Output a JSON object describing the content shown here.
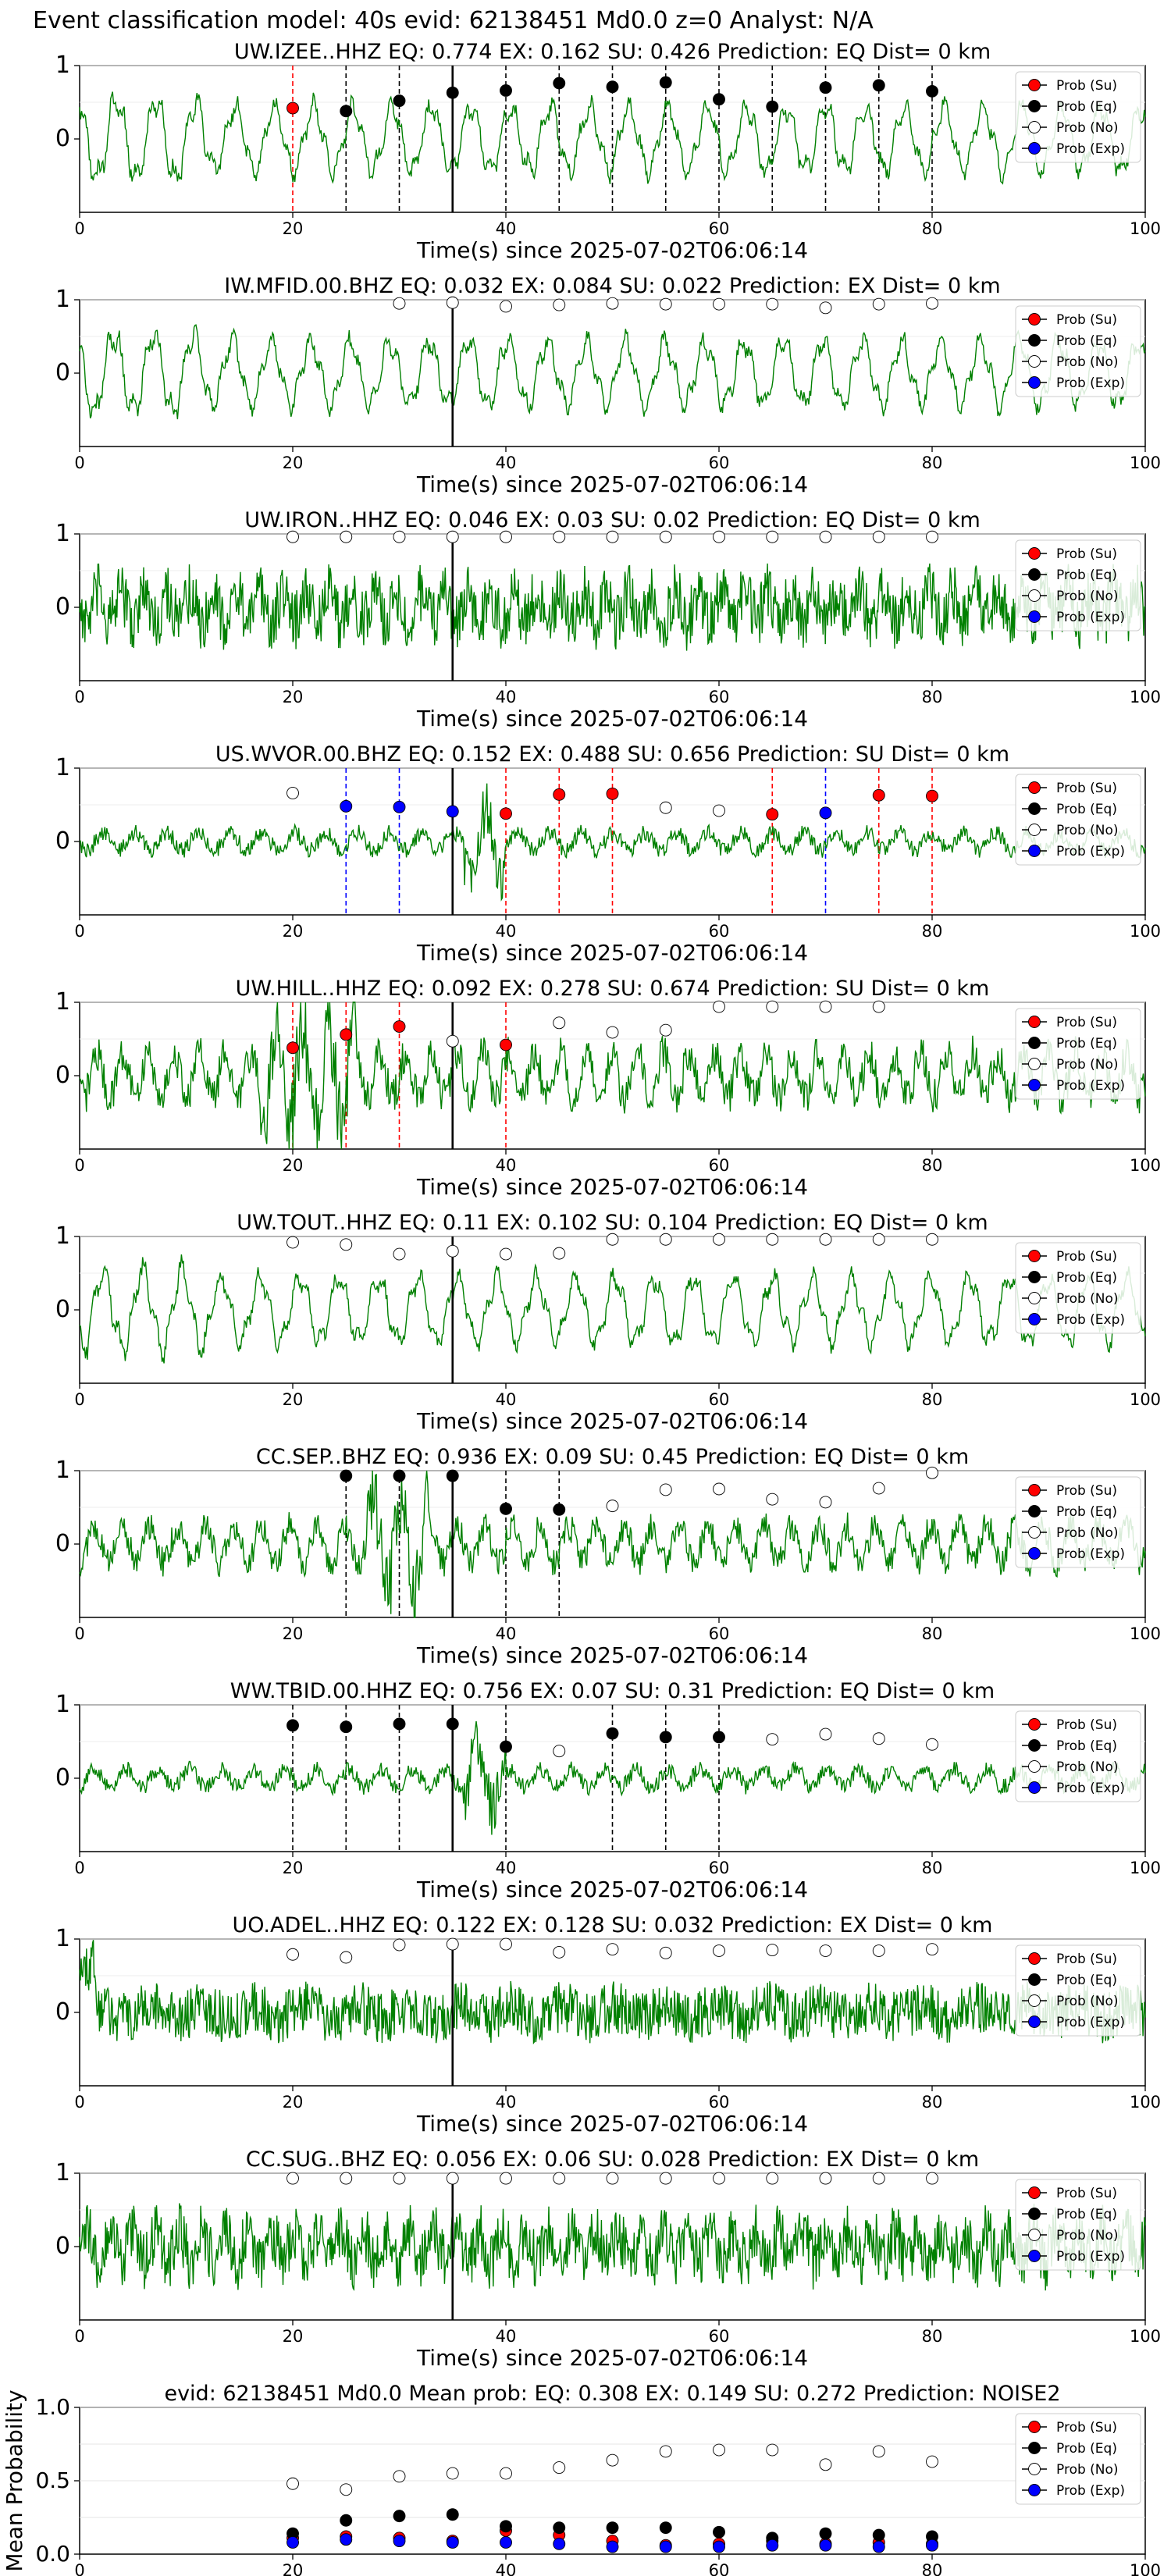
{
  "figure": {
    "suptitle": "Event classification model: 40s evid: 62138451 Md0.0 z=0 Analyst: N/A",
    "xlabel": "Time(s) since 2025-07-02T06:06:14"
  },
  "legend": [
    "Prob (Su)",
    "Prob (Eq)",
    "Prob (No)",
    "Prob (Exp)"
  ],
  "colors": {
    "su": "#ff0000",
    "eq": "#000000",
    "no": "#ffffff",
    "exp": "#0000ff",
    "waveform": "#008000",
    "arrival": "#000000"
  },
  "chart_data": [
    {
      "type": "line",
      "title": "UW.IZEE..HHZ   EQ: 0.774   EX: 0.162   SU: 0.426   Prediction: EQ    Dist= 0 km",
      "xlabel": "Time(s) since 2025-07-02T06:06:14",
      "ylabel": "",
      "xlim": [
        0,
        100
      ],
      "ylim": [
        -1,
        1
      ],
      "xticks": [
        "0",
        "20",
        "40",
        "60",
        "80",
        "100"
      ],
      "yticks": [
        "0",
        "1"
      ],
      "arrival_time": 35,
      "waveform_style": "low",
      "markers": [
        {
          "x": 20,
          "y": 0.42,
          "cls": "su"
        },
        {
          "x": 25,
          "y": 0.38,
          "cls": "eq"
        },
        {
          "x": 30,
          "y": 0.52,
          "cls": "eq"
        },
        {
          "x": 35,
          "y": 0.63,
          "cls": "eq"
        },
        {
          "x": 40,
          "y": 0.66,
          "cls": "eq"
        },
        {
          "x": 45,
          "y": 0.76,
          "cls": "eq"
        },
        {
          "x": 50,
          "y": 0.71,
          "cls": "eq"
        },
        {
          "x": 55,
          "y": 0.77,
          "cls": "eq"
        },
        {
          "x": 60,
          "y": 0.54,
          "cls": "eq"
        },
        {
          "x": 65,
          "y": 0.44,
          "cls": "eq"
        },
        {
          "x": 70,
          "y": 0.7,
          "cls": "eq"
        },
        {
          "x": 75,
          "y": 0.73,
          "cls": "eq"
        },
        {
          "x": 80,
          "y": 0.65,
          "cls": "eq"
        }
      ]
    },
    {
      "type": "line",
      "title": "IW.MFID.00.BHZ   EQ: 0.032   EX: 0.084   SU: 0.022   Prediction: EX    Dist= 0 km",
      "xlabel": "Time(s) since 2025-07-02T06:06:14",
      "ylabel": "",
      "xlim": [
        0,
        100
      ],
      "ylim": [
        -1,
        1
      ],
      "xticks": [
        "0",
        "20",
        "40",
        "60",
        "80",
        "100"
      ],
      "yticks": [
        "0",
        "1"
      ],
      "arrival_time": 35,
      "waveform_style": "low",
      "markers": [
        {
          "x": 30,
          "y": 0.95,
          "cls": "no"
        },
        {
          "x": 35,
          "y": 0.96,
          "cls": "no"
        },
        {
          "x": 40,
          "y": 0.91,
          "cls": "no"
        },
        {
          "x": 45,
          "y": 0.93,
          "cls": "no"
        },
        {
          "x": 50,
          "y": 0.95,
          "cls": "no"
        },
        {
          "x": 55,
          "y": 0.94,
          "cls": "no"
        },
        {
          "x": 60,
          "y": 0.94,
          "cls": "no"
        },
        {
          "x": 65,
          "y": 0.94,
          "cls": "no"
        },
        {
          "x": 70,
          "y": 0.89,
          "cls": "no"
        },
        {
          "x": 75,
          "y": 0.94,
          "cls": "no"
        },
        {
          "x": 80,
          "y": 0.95,
          "cls": "no"
        }
      ]
    },
    {
      "type": "line",
      "title": "UW.IRON..HHZ   EQ: 0.046   EX: 0.03   SU: 0.02   Prediction: EQ    Dist= 0 km",
      "xlabel": "Time(s) since 2025-07-02T06:06:14",
      "ylabel": "",
      "xlim": [
        0,
        100
      ],
      "ylim": [
        -1,
        1
      ],
      "xticks": [
        "0",
        "20",
        "40",
        "60",
        "80",
        "100"
      ],
      "yticks": [
        "0",
        "1"
      ],
      "arrival_time": 35,
      "waveform_style": "high",
      "markers": [
        {
          "x": 20,
          "y": 0.96,
          "cls": "no"
        },
        {
          "x": 25,
          "y": 0.96,
          "cls": "no"
        },
        {
          "x": 30,
          "y": 0.96,
          "cls": "no"
        },
        {
          "x": 35,
          "y": 0.96,
          "cls": "no"
        },
        {
          "x": 40,
          "y": 0.96,
          "cls": "no"
        },
        {
          "x": 45,
          "y": 0.96,
          "cls": "no"
        },
        {
          "x": 50,
          "y": 0.96,
          "cls": "no"
        },
        {
          "x": 55,
          "y": 0.96,
          "cls": "no"
        },
        {
          "x": 60,
          "y": 0.96,
          "cls": "no"
        },
        {
          "x": 65,
          "y": 0.96,
          "cls": "no"
        },
        {
          "x": 70,
          "y": 0.96,
          "cls": "no"
        },
        {
          "x": 75,
          "y": 0.96,
          "cls": "no"
        },
        {
          "x": 80,
          "y": 0.96,
          "cls": "no"
        }
      ]
    },
    {
      "type": "line",
      "title": "US.WVOR.00.BHZ   EQ: 0.152   EX: 0.488   SU: 0.656   Prediction: SU    Dist= 0 km",
      "xlabel": "Time(s) since 2025-07-02T06:06:14",
      "ylabel": "",
      "xlim": [
        0,
        100
      ],
      "ylim": [
        -1,
        1
      ],
      "xticks": [
        "0",
        "20",
        "40",
        "60",
        "80",
        "100"
      ],
      "yticks": [
        "0",
        "1"
      ],
      "arrival_time": 35,
      "waveform_style": "quiet",
      "markers": [
        {
          "x": 20,
          "y": 0.66,
          "cls": "no"
        },
        {
          "x": 25,
          "y": 0.48,
          "cls": "exp"
        },
        {
          "x": 30,
          "y": 0.47,
          "cls": "exp"
        },
        {
          "x": 35,
          "y": 0.41,
          "cls": "exp"
        },
        {
          "x": 40,
          "y": 0.38,
          "cls": "su"
        },
        {
          "x": 45,
          "y": 0.64,
          "cls": "su"
        },
        {
          "x": 50,
          "y": 0.65,
          "cls": "su"
        },
        {
          "x": 55,
          "y": 0.46,
          "cls": "no"
        },
        {
          "x": 60,
          "y": 0.42,
          "cls": "no"
        },
        {
          "x": 65,
          "y": 0.37,
          "cls": "su"
        },
        {
          "x": 70,
          "y": 0.39,
          "cls": "exp"
        },
        {
          "x": 75,
          "y": 0.63,
          "cls": "su"
        },
        {
          "x": 80,
          "y": 0.62,
          "cls": "su"
        }
      ]
    },
    {
      "type": "line",
      "title": "UW.HILL..HHZ   EQ: 0.092   EX: 0.278   SU: 0.674   Prediction: SU    Dist= 0 km",
      "xlabel": "Time(s) since 2025-07-02T06:06:14",
      "ylabel": "",
      "xlim": [
        0,
        100
      ],
      "ylim": [
        -1,
        1
      ],
      "xticks": [
        "0",
        "20",
        "40",
        "60",
        "80",
        "100"
      ],
      "yticks": [
        "0",
        "1"
      ],
      "arrival_time": 35,
      "waveform_style": "burst",
      "markers": [
        {
          "x": 20,
          "y": 0.38,
          "cls": "su"
        },
        {
          "x": 25,
          "y": 0.56,
          "cls": "su"
        },
        {
          "x": 30,
          "y": 0.67,
          "cls": "su"
        },
        {
          "x": 35,
          "y": 0.47,
          "cls": "no"
        },
        {
          "x": 40,
          "y": 0.42,
          "cls": "su"
        },
        {
          "x": 45,
          "y": 0.72,
          "cls": "no"
        },
        {
          "x": 50,
          "y": 0.59,
          "cls": "no"
        },
        {
          "x": 55,
          "y": 0.62,
          "cls": "no"
        },
        {
          "x": 60,
          "y": 0.94,
          "cls": "no"
        },
        {
          "x": 65,
          "y": 0.94,
          "cls": "no"
        },
        {
          "x": 70,
          "y": 0.94,
          "cls": "no"
        },
        {
          "x": 75,
          "y": 0.94,
          "cls": "no"
        }
      ]
    },
    {
      "type": "line",
      "title": "UW.TOUT..HHZ   EQ: 0.11   EX: 0.102   SU: 0.104   Prediction: EQ    Dist= 0 km",
      "xlabel": "Time(s) since 2025-07-02T06:06:14",
      "ylabel": "",
      "xlim": [
        0,
        100
      ],
      "ylim": [
        -1,
        1
      ],
      "xticks": [
        "0",
        "20",
        "40",
        "60",
        "80",
        "100"
      ],
      "yticks": [
        "0",
        "1"
      ],
      "arrival_time": 35,
      "waveform_style": "low",
      "markers": [
        {
          "x": 20,
          "y": 0.92,
          "cls": "no"
        },
        {
          "x": 25,
          "y": 0.89,
          "cls": "no"
        },
        {
          "x": 30,
          "y": 0.76,
          "cls": "no"
        },
        {
          "x": 35,
          "y": 0.8,
          "cls": "no"
        },
        {
          "x": 40,
          "y": 0.76,
          "cls": "no"
        },
        {
          "x": 45,
          "y": 0.77,
          "cls": "no"
        },
        {
          "x": 50,
          "y": 0.96,
          "cls": "no"
        },
        {
          "x": 55,
          "y": 0.96,
          "cls": "no"
        },
        {
          "x": 60,
          "y": 0.96,
          "cls": "no"
        },
        {
          "x": 65,
          "y": 0.96,
          "cls": "no"
        },
        {
          "x": 70,
          "y": 0.96,
          "cls": "no"
        },
        {
          "x": 75,
          "y": 0.96,
          "cls": "no"
        },
        {
          "x": 80,
          "y": 0.96,
          "cls": "no"
        }
      ]
    },
    {
      "type": "line",
      "title": "CC.SEP..BHZ   EQ: 0.936   EX: 0.09   SU: 0.45   Prediction: EQ    Dist= 0 km",
      "xlabel": "Time(s) since 2025-07-02T06:06:14",
      "ylabel": "",
      "xlim": [
        0,
        100
      ],
      "ylim": [
        -1,
        1
      ],
      "xticks": [
        "0",
        "20",
        "40",
        "60",
        "80",
        "100"
      ],
      "yticks": [
        "0",
        "1"
      ],
      "arrival_time": 35,
      "waveform_style": "mid",
      "markers": [
        {
          "x": 25,
          "y": 0.93,
          "cls": "eq"
        },
        {
          "x": 30,
          "y": 0.93,
          "cls": "eq"
        },
        {
          "x": 35,
          "y": 0.93,
          "cls": "eq"
        },
        {
          "x": 40,
          "y": 0.48,
          "cls": "eq"
        },
        {
          "x": 45,
          "y": 0.47,
          "cls": "eq"
        },
        {
          "x": 50,
          "y": 0.52,
          "cls": "no"
        },
        {
          "x": 55,
          "y": 0.74,
          "cls": "no"
        },
        {
          "x": 60,
          "y": 0.75,
          "cls": "no"
        },
        {
          "x": 65,
          "y": 0.61,
          "cls": "no"
        },
        {
          "x": 70,
          "y": 0.57,
          "cls": "no"
        },
        {
          "x": 75,
          "y": 0.76,
          "cls": "no"
        },
        {
          "x": 80,
          "y": 0.97,
          "cls": "no"
        }
      ]
    },
    {
      "type": "line",
      "title": "WW.TBID.00.HHZ   EQ: 0.756   EX: 0.07   SU: 0.31   Prediction: EQ    Dist= 0 km",
      "xlabel": "Time(s) since 2025-07-02T06:06:14",
      "ylabel": "",
      "xlim": [
        0,
        100
      ],
      "ylim": [
        -1,
        1
      ],
      "xticks": [
        "0",
        "20",
        "40",
        "60",
        "80",
        "100"
      ],
      "yticks": [
        "0",
        "1"
      ],
      "arrival_time": 35,
      "waveform_style": "quiet",
      "markers": [
        {
          "x": 20,
          "y": 0.72,
          "cls": "eq"
        },
        {
          "x": 25,
          "y": 0.7,
          "cls": "eq"
        },
        {
          "x": 30,
          "y": 0.74,
          "cls": "eq"
        },
        {
          "x": 35,
          "y": 0.74,
          "cls": "eq"
        },
        {
          "x": 40,
          "y": 0.43,
          "cls": "eq"
        },
        {
          "x": 45,
          "y": 0.37,
          "cls": "no"
        },
        {
          "x": 50,
          "y": 0.61,
          "cls": "eq"
        },
        {
          "x": 55,
          "y": 0.56,
          "cls": "eq"
        },
        {
          "x": 60,
          "y": 0.56,
          "cls": "eq"
        },
        {
          "x": 65,
          "y": 0.53,
          "cls": "no"
        },
        {
          "x": 70,
          "y": 0.6,
          "cls": "no"
        },
        {
          "x": 75,
          "y": 0.54,
          "cls": "no"
        },
        {
          "x": 80,
          "y": 0.46,
          "cls": "no"
        }
      ]
    },
    {
      "type": "line",
      "title": "UO.ADEL..HHZ   EQ: 0.122   EX: 0.128   SU: 0.032   Prediction: EX    Dist= 0 km",
      "xlabel": "Time(s) since 2025-07-02T06:06:14",
      "ylabel": "",
      "xlim": [
        0,
        100
      ],
      "ylim": [
        -1,
        1
      ],
      "xticks": [
        "0",
        "20",
        "40",
        "60",
        "80",
        "100"
      ],
      "yticks": [
        "0",
        "1"
      ],
      "arrival_time": 35,
      "waveform_style": "noise",
      "markers": [
        {
          "x": 20,
          "y": 0.79,
          "cls": "no"
        },
        {
          "x": 25,
          "y": 0.75,
          "cls": "no"
        },
        {
          "x": 30,
          "y": 0.92,
          "cls": "no"
        },
        {
          "x": 35,
          "y": 0.93,
          "cls": "no"
        },
        {
          "x": 40,
          "y": 0.93,
          "cls": "no"
        },
        {
          "x": 45,
          "y": 0.82,
          "cls": "no"
        },
        {
          "x": 50,
          "y": 0.86,
          "cls": "no"
        },
        {
          "x": 55,
          "y": 0.81,
          "cls": "no"
        },
        {
          "x": 60,
          "y": 0.84,
          "cls": "no"
        },
        {
          "x": 65,
          "y": 0.85,
          "cls": "no"
        },
        {
          "x": 70,
          "y": 0.84,
          "cls": "no"
        },
        {
          "x": 75,
          "y": 0.84,
          "cls": "no"
        },
        {
          "x": 80,
          "y": 0.86,
          "cls": "no"
        }
      ]
    },
    {
      "type": "line",
      "title": "CC.SUG..BHZ   EQ: 0.056   EX: 0.06   SU: 0.028   Prediction: EX    Dist= 0 km",
      "xlabel": "Time(s) since 2025-07-02T06:06:14",
      "ylabel": "",
      "xlim": [
        0,
        100
      ],
      "ylim": [
        -1,
        1
      ],
      "xticks": [
        "0",
        "20",
        "40",
        "60",
        "80",
        "100"
      ],
      "yticks": [
        "0",
        "1"
      ],
      "arrival_time": 35,
      "waveform_style": "high",
      "markers": [
        {
          "x": 20,
          "y": 0.93,
          "cls": "no"
        },
        {
          "x": 25,
          "y": 0.93,
          "cls": "no"
        },
        {
          "x": 30,
          "y": 0.93,
          "cls": "no"
        },
        {
          "x": 35,
          "y": 0.93,
          "cls": "no"
        },
        {
          "x": 40,
          "y": 0.93,
          "cls": "no"
        },
        {
          "x": 45,
          "y": 0.93,
          "cls": "no"
        },
        {
          "x": 50,
          "y": 0.93,
          "cls": "no"
        },
        {
          "x": 55,
          "y": 0.93,
          "cls": "no"
        },
        {
          "x": 60,
          "y": 0.93,
          "cls": "no"
        },
        {
          "x": 65,
          "y": 0.93,
          "cls": "no"
        },
        {
          "x": 70,
          "y": 0.93,
          "cls": "no"
        },
        {
          "x": 75,
          "y": 0.93,
          "cls": "no"
        },
        {
          "x": 80,
          "y": 0.93,
          "cls": "no"
        }
      ]
    },
    {
      "type": "scatter",
      "title": "evid: 62138451  Md0.0   Mean prob:   EQ: 0.308  EX: 0.149  SU: 0.272   Prediction: NOISE2",
      "xlabel": "",
      "ylabel": "Mean Probability",
      "xlim": [
        0,
        100
      ],
      "ylim": [
        0,
        1
      ],
      "xticks": [
        "0",
        "20",
        "40",
        "60",
        "80",
        "100"
      ],
      "yticks": [
        "0.0",
        "0.5",
        "1.0"
      ],
      "x": [
        20,
        25,
        30,
        35,
        40,
        45,
        50,
        55,
        60,
        65,
        70,
        75,
        80
      ],
      "series": [
        {
          "name": "Prob (Su)",
          "cls": "su",
          "values": [
            0.11,
            0.12,
            0.11,
            0.09,
            0.16,
            0.13,
            0.09,
            0.06,
            0.07,
            0.09,
            0.07,
            0.08,
            0.07
          ]
        },
        {
          "name": "Prob (Eq)",
          "cls": "eq",
          "values": [
            0.14,
            0.23,
            0.26,
            0.27,
            0.19,
            0.18,
            0.18,
            0.18,
            0.15,
            0.11,
            0.14,
            0.13,
            0.12
          ]
        },
        {
          "name": "Prob (No)",
          "cls": "no",
          "values": [
            0.48,
            0.44,
            0.53,
            0.55,
            0.55,
            0.59,
            0.64,
            0.7,
            0.71,
            0.71,
            0.61,
            0.7,
            0.63
          ]
        },
        {
          "name": "Prob (Exp)",
          "cls": "exp",
          "values": [
            0.08,
            0.1,
            0.09,
            0.08,
            0.08,
            0.07,
            0.05,
            0.05,
            0.05,
            0.06,
            0.06,
            0.05,
            0.06
          ]
        }
      ]
    }
  ]
}
